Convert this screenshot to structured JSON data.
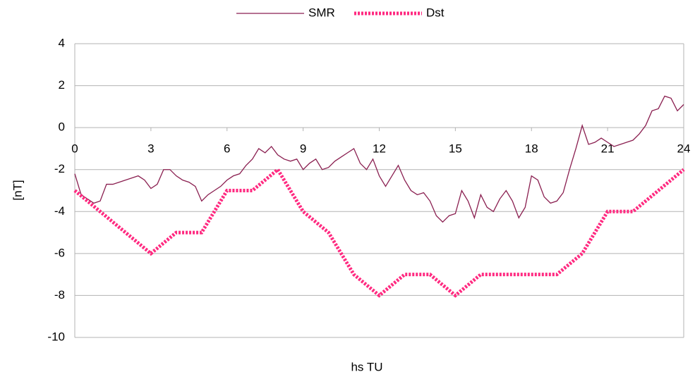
{
  "chart_data": {
    "type": "line",
    "x_label": "hs TU",
    "y_label": "[nT]",
    "xlim": [
      0,
      24
    ],
    "xticks": [
      0,
      3,
      6,
      9,
      12,
      15,
      18,
      21,
      24
    ],
    "ylim": [
      -10,
      4
    ],
    "yticks": [
      -10,
      -8,
      -6,
      -4,
      -2,
      0,
      2,
      4
    ],
    "grid": true,
    "legend": "top",
    "series": [
      {
        "name": "SMR",
        "color": "#8a1f50",
        "style": "solid",
        "x": [
          0,
          0.25,
          0.5,
          0.75,
          1,
          1.25,
          1.5,
          1.75,
          2,
          2.25,
          2.5,
          2.75,
          3,
          3.25,
          3.5,
          3.75,
          4,
          4.25,
          4.5,
          4.75,
          5,
          5.25,
          5.5,
          5.75,
          6,
          6.25,
          6.5,
          6.75,
          7,
          7.25,
          7.5,
          7.75,
          8,
          8.25,
          8.5,
          8.75,
          9,
          9.25,
          9.5,
          9.75,
          10,
          10.25,
          10.5,
          10.75,
          11,
          11.25,
          11.5,
          11.75,
          12,
          12.25,
          12.5,
          12.75,
          13,
          13.25,
          13.5,
          13.75,
          14,
          14.25,
          14.5,
          14.75,
          15,
          15.25,
          15.5,
          15.75,
          16,
          16.25,
          16.5,
          16.75,
          17,
          17.25,
          17.5,
          17.75,
          18,
          18.25,
          18.5,
          18.75,
          19,
          19.25,
          19.5,
          19.75,
          20,
          20.25,
          20.5,
          20.75,
          21,
          21.25,
          21.5,
          21.75,
          22,
          22.25,
          22.5,
          22.75,
          23,
          23.25,
          23.5,
          23.75,
          24
        ],
        "values": [
          -2.2,
          -3.2,
          -3.4,
          -3.6,
          -3.5,
          -2.7,
          -2.7,
          -2.6,
          -2.5,
          -2.4,
          -2.3,
          -2.5,
          -2.9,
          -2.7,
          -2.0,
          -2.0,
          -2.3,
          -2.5,
          -2.6,
          -2.8,
          -3.5,
          -3.2,
          -3.0,
          -2.8,
          -2.5,
          -2.3,
          -2.2,
          -1.8,
          -1.5,
          -1.0,
          -1.2,
          -0.9,
          -1.3,
          -1.5,
          -1.6,
          -1.5,
          -2.0,
          -1.7,
          -1.5,
          -2.0,
          -1.9,
          -1.6,
          -1.4,
          -1.2,
          -1.0,
          -1.7,
          -2.0,
          -1.5,
          -2.3,
          -2.8,
          -2.3,
          -1.8,
          -2.5,
          -3.0,
          -3.2,
          -3.1,
          -3.5,
          -4.2,
          -4.5,
          -4.2,
          -4.1,
          -3.0,
          -3.5,
          -4.3,
          -3.2,
          -3.8,
          -4.0,
          -3.4,
          -3.0,
          -3.5,
          -4.3,
          -3.8,
          -2.3,
          -2.5,
          -3.3,
          -3.6,
          -3.5,
          -3.1,
          -2.0,
          -1.0,
          0.1,
          -0.8,
          -0.7,
          -0.5,
          -0.7,
          -0.9,
          -0.8,
          -0.7,
          -0.6,
          -0.3,
          0.1,
          0.8,
          0.9,
          1.5,
          1.4,
          0.8,
          1.1
        ]
      },
      {
        "name": "Dst",
        "color": "#ff2a80",
        "style": "dotted",
        "x": [
          0,
          1,
          2,
          3,
          4,
          5,
          6,
          7,
          8,
          9,
          10,
          11,
          12,
          13,
          14,
          15,
          16,
          17,
          18,
          19,
          20,
          21,
          22,
          23,
          24
        ],
        "values": [
          -3,
          -4,
          -5,
          -6,
          -5,
          -5,
          -3,
          -3,
          -2,
          -4,
          -5,
          -7,
          -8,
          -7,
          -7,
          -8,
          -7,
          -7,
          -7,
          -7,
          -6,
          -4,
          -4,
          -3,
          -2
        ]
      }
    ]
  }
}
